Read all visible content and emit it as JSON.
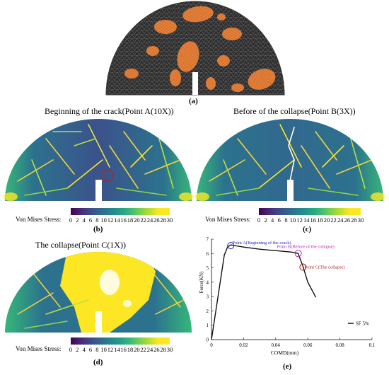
{
  "panels": {
    "a": {
      "caption": "(a)"
    },
    "b": {
      "title": "Beginning of the crack(Point A(10X))",
      "caption": "(b)"
    },
    "c": {
      "title": "Before of the collapse(Point B(3X))",
      "caption": "(c)"
    },
    "d": {
      "title": "The collapse(Point C(1X))",
      "caption": "(d)"
    },
    "e": {
      "caption": "(e)"
    }
  },
  "colorbar": {
    "label": "Von Mises Stress:",
    "ticks": [
      "0",
      "2",
      "4",
      "6",
      "8",
      "10",
      "12",
      "14",
      "16",
      "18",
      "20",
      "22",
      "24",
      "26",
      "28",
      "30"
    ]
  },
  "colors": {
    "mesh": "#3c3c3c",
    "aggregate": "#e8813a",
    "fiber": "#f5d33a",
    "viridis_low": "#440154",
    "viridis_high": "#fde725",
    "point_a": "#1f1fb5",
    "point_b": "#b224b2",
    "point_c": "#b22222"
  },
  "chart_data": {
    "type": "line",
    "xlabel": "COMD(mm)",
    "ylabel": "Force(KN)",
    "xlim": [
      0,
      0.1
    ],
    "ylim": [
      0,
      7
    ],
    "xticks": [
      "0",
      "0.02",
      "0.04",
      "0.06",
      "0.08",
      "0.1"
    ],
    "yticks": [
      "0",
      "1",
      "2",
      "3",
      "4",
      "5",
      "6",
      "7"
    ],
    "series": [
      {
        "name": "SF 5%",
        "x": [
          0,
          0.008,
          0.01,
          0.012,
          0.02,
          0.03,
          0.04,
          0.05,
          0.054,
          0.057,
          0.06,
          0.065
        ],
        "y": [
          0,
          5.9,
          6.45,
          6.6,
          6.45,
          6.3,
          6.2,
          6.1,
          6.0,
          5.1,
          4.0,
          2.95
        ]
      }
    ],
    "points": [
      {
        "label": "Point A(Beginning of the crack)",
        "x": 0.012,
        "y": 6.55,
        "color": "#1f1fb5"
      },
      {
        "label": "Point B(Before of the collapse)",
        "x": 0.054,
        "y": 6.0,
        "color": "#b224b2"
      },
      {
        "label": "Point C(The collapse)",
        "x": 0.057,
        "y": 5.05,
        "color": "#b22222"
      }
    ],
    "legend": "bottom-right",
    "grid": false
  }
}
